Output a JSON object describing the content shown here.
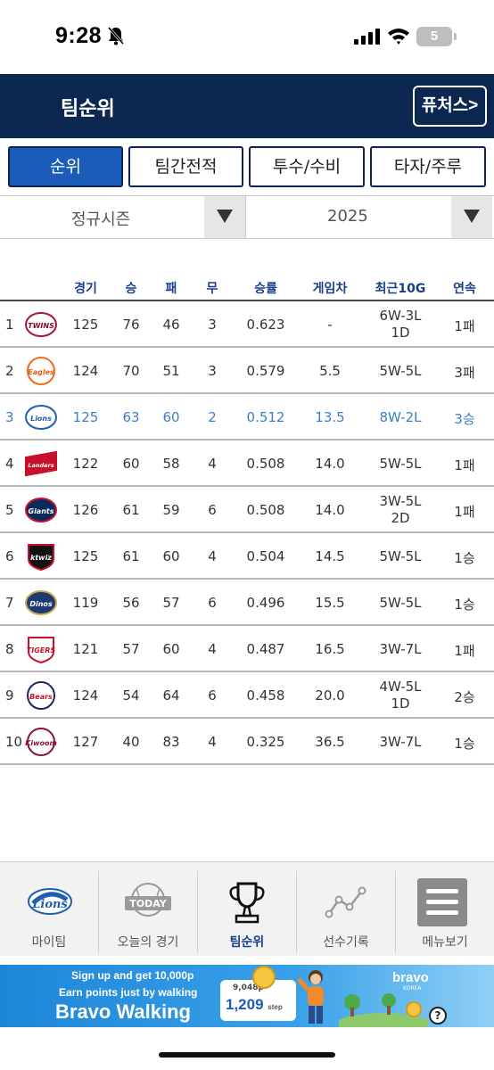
{
  "status_bar": {
    "time": "9:28",
    "battery": "5"
  },
  "header": {
    "title": "팀순위",
    "futures_button": "퓨처스>"
  },
  "tabs": [
    {
      "label": "순위",
      "active": true
    },
    {
      "label": "팀간전적",
      "active": false
    },
    {
      "label": "투수/수비",
      "active": false
    },
    {
      "label": "타자/주루",
      "active": false
    }
  ],
  "filters": {
    "season": "정규시즌",
    "year": "2025"
  },
  "standings": {
    "columns": [
      "경기",
      "승",
      "패",
      "무",
      "승률",
      "게임차",
      "최근10G",
      "연속"
    ],
    "rows": [
      {
        "rank": "1",
        "team": "LG Twins",
        "logo_text": "TWINS",
        "games": "125",
        "wins": "76",
        "losses": "46",
        "draws": "3",
        "pct": "0.623",
        "gb": "-",
        "last10": [
          "6W-3L",
          "1D"
        ],
        "streak": "1패",
        "highlight": false
      },
      {
        "rank": "2",
        "team": "Hanwha Eagles",
        "logo_text": "Eagles",
        "games": "124",
        "wins": "70",
        "losses": "51",
        "draws": "3",
        "pct": "0.579",
        "gb": "5.5",
        "last10": [
          "5W-5L"
        ],
        "streak": "3패",
        "highlight": false
      },
      {
        "rank": "3",
        "team": "Samsung Lions",
        "logo_text": "Lions",
        "games": "125",
        "wins": "63",
        "losses": "60",
        "draws": "2",
        "pct": "0.512",
        "gb": "13.5",
        "last10": [
          "8W-2L"
        ],
        "streak": "3승",
        "highlight": true
      },
      {
        "rank": "4",
        "team": "SSG Landers",
        "logo_text": "Landers",
        "games": "122",
        "wins": "60",
        "losses": "58",
        "draws": "4",
        "pct": "0.508",
        "gb": "14.0",
        "last10": [
          "5W-5L"
        ],
        "streak": "1패",
        "highlight": false
      },
      {
        "rank": "5",
        "team": "Lotte Giants",
        "logo_text": "Giants",
        "games": "126",
        "wins": "61",
        "losses": "59",
        "draws": "6",
        "pct": "0.508",
        "gb": "14.0",
        "last10": [
          "3W-5L",
          "2D"
        ],
        "streak": "1패",
        "highlight": false
      },
      {
        "rank": "6",
        "team": "KT Wiz",
        "logo_text": "ktwiz",
        "games": "125",
        "wins": "61",
        "losses": "60",
        "draws": "4",
        "pct": "0.504",
        "gb": "14.5",
        "last10": [
          "5W-5L"
        ],
        "streak": "1승",
        "highlight": false
      },
      {
        "rank": "7",
        "team": "NC Dinos",
        "logo_text": "Dinos",
        "games": "119",
        "wins": "56",
        "losses": "57",
        "draws": "6",
        "pct": "0.496",
        "gb": "15.5",
        "last10": [
          "5W-5L"
        ],
        "streak": "1승",
        "highlight": false
      },
      {
        "rank": "8",
        "team": "KIA Tigers",
        "logo_text": "TIGERS",
        "games": "121",
        "wins": "57",
        "losses": "60",
        "draws": "4",
        "pct": "0.487",
        "gb": "16.5",
        "last10": [
          "3W-7L"
        ],
        "streak": "1패",
        "highlight": false
      },
      {
        "rank": "9",
        "team": "Doosan Bears",
        "logo_text": "Bears",
        "games": "124",
        "wins": "54",
        "losses": "64",
        "draws": "6",
        "pct": "0.458",
        "gb": "20.0",
        "last10": [
          "4W-5L",
          "1D"
        ],
        "streak": "2승",
        "highlight": false
      },
      {
        "rank": "10",
        "team": "Kiwoom Heroes",
        "logo_text": "Kiwoom",
        "games": "127",
        "wins": "40",
        "losses": "83",
        "draws": "4",
        "pct": "0.325",
        "gb": "36.5",
        "last10": [
          "3W-7L"
        ],
        "streak": "1승",
        "highlight": false
      }
    ]
  },
  "bottom_nav": [
    {
      "label": "마이팀",
      "icon": "lions-logo-icon",
      "active": false
    },
    {
      "label": "오늘의 경기",
      "icon": "today-baseball-icon",
      "active": false
    },
    {
      "label": "팀순위",
      "icon": "trophy-icon",
      "active": true
    },
    {
      "label": "선수기록",
      "icon": "line-chart-icon",
      "active": false
    },
    {
      "label": "메뉴보기",
      "icon": "menu-icon",
      "active": false
    }
  ],
  "ad": {
    "line1": "Sign up and get 10,000p",
    "line2": "Earn points just by walking",
    "title": "Bravo Walking",
    "card_small": "9,048p",
    "card_big": "1,209",
    "card_unit": "step",
    "brand": "bravo",
    "brand_sub": "KOREA",
    "help": "?"
  },
  "colors": {
    "header_bg": "#0c2850",
    "active_tab": "#1a5cb8",
    "column_header": "#1a3f8a",
    "highlight_row": "#3a7fc6"
  }
}
